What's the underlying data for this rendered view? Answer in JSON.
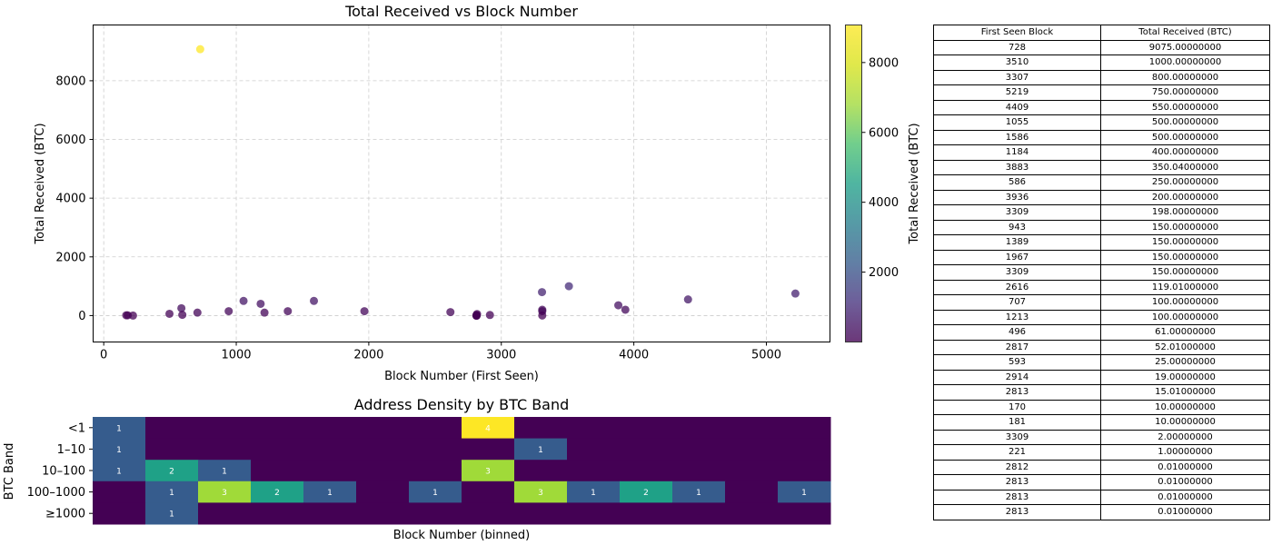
{
  "chart_data": [
    {
      "type": "scatter",
      "title": "Total Received vs Block Number",
      "xlabel": "Block Number (First Seen)",
      "ylabel": "Total Received (BTC)",
      "xlim": [
        -80,
        5480
      ],
      "ylim": [
        -900,
        9900
      ],
      "xticks": [
        0,
        1000,
        2000,
        3000,
        4000,
        5000
      ],
      "yticks": [
        0,
        2000,
        4000,
        6000,
        8000
      ],
      "grid": true,
      "colormap": "viridis",
      "points": [
        {
          "x": 728,
          "y": 9075.0
        },
        {
          "x": 3510,
          "y": 1000.0
        },
        {
          "x": 3307,
          "y": 800.0
        },
        {
          "x": 5219,
          "y": 750.0
        },
        {
          "x": 4409,
          "y": 550.0
        },
        {
          "x": 1055,
          "y": 500.0
        },
        {
          "x": 1586,
          "y": 500.0
        },
        {
          "x": 1184,
          "y": 400.0
        },
        {
          "x": 3883,
          "y": 350.04
        },
        {
          "x": 586,
          "y": 250.0
        },
        {
          "x": 3936,
          "y": 200.0
        },
        {
          "x": 3309,
          "y": 198.0
        },
        {
          "x": 943,
          "y": 150.0
        },
        {
          "x": 1389,
          "y": 150.0
        },
        {
          "x": 1967,
          "y": 150.0
        },
        {
          "x": 3309,
          "y": 150.0
        },
        {
          "x": 2616,
          "y": 119.01
        },
        {
          "x": 707,
          "y": 100.0
        },
        {
          "x": 1213,
          "y": 100.0
        },
        {
          "x": 496,
          "y": 61.0
        },
        {
          "x": 2817,
          "y": 52.01
        },
        {
          "x": 593,
          "y": 25.0
        },
        {
          "x": 2914,
          "y": 19.0
        },
        {
          "x": 2813,
          "y": 15.01
        },
        {
          "x": 170,
          "y": 10.0
        },
        {
          "x": 181,
          "y": 10.0
        },
        {
          "x": 3309,
          "y": 2.0
        },
        {
          "x": 221,
          "y": 1.0
        },
        {
          "x": 2812,
          "y": 0.01
        },
        {
          "x": 2813,
          "y": 0.01
        },
        {
          "x": 2813,
          "y": 0.01
        },
        {
          "x": 2813,
          "y": 0.01
        }
      ]
    },
    {
      "type": "heatmap",
      "title": "Address Density by BTC Band",
      "xlabel": "Block Number (binned)",
      "ylabel": "BTC Band",
      "rows": [
        "<1",
        "1–10",
        "10–100",
        "100–1000",
        "≥1000"
      ],
      "n_cols": 14,
      "cells": [
        [
          1,
          0,
          0,
          0,
          0,
          0,
          0,
          4,
          0,
          0,
          0,
          0,
          0,
          0
        ],
        [
          1,
          0,
          0,
          0,
          0,
          0,
          0,
          0,
          1,
          0,
          0,
          0,
          0,
          0
        ],
        [
          1,
          2,
          1,
          0,
          0,
          0,
          0,
          3,
          0,
          0,
          0,
          0,
          0,
          0
        ],
        [
          0,
          1,
          3,
          2,
          1,
          0,
          1,
          0,
          3,
          1,
          2,
          1,
          0,
          1
        ],
        [
          0,
          1,
          0,
          0,
          0,
          0,
          0,
          0,
          0,
          0,
          0,
          0,
          0,
          0
        ]
      ],
      "vmin": 0,
      "vmax": 4
    },
    {
      "type": "colorbar",
      "label": "Total Received (BTC)",
      "ticks": [
        2000,
        4000,
        6000,
        8000
      ],
      "range": [
        0.01,
        9075
      ]
    },
    {
      "type": "table",
      "columns": [
        "First Seen Block",
        "Total Received (BTC)"
      ],
      "rows": [
        [
          "728",
          "9075.00000000"
        ],
        [
          "3510",
          "1000.00000000"
        ],
        [
          "3307",
          "800.00000000"
        ],
        [
          "5219",
          "750.00000000"
        ],
        [
          "4409",
          "550.00000000"
        ],
        [
          "1055",
          "500.00000000"
        ],
        [
          "1586",
          "500.00000000"
        ],
        [
          "1184",
          "400.00000000"
        ],
        [
          "3883",
          "350.04000000"
        ],
        [
          "586",
          "250.00000000"
        ],
        [
          "3936",
          "200.00000000"
        ],
        [
          "3309",
          "198.00000000"
        ],
        [
          "943",
          "150.00000000"
        ],
        [
          "1389",
          "150.00000000"
        ],
        [
          "1967",
          "150.00000000"
        ],
        [
          "3309",
          "150.00000000"
        ],
        [
          "2616",
          "119.01000000"
        ],
        [
          "707",
          "100.00000000"
        ],
        [
          "1213",
          "100.00000000"
        ],
        [
          "496",
          "61.00000000"
        ],
        [
          "2817",
          "52.01000000"
        ],
        [
          "593",
          "25.00000000"
        ],
        [
          "2914",
          "19.00000000"
        ],
        [
          "2813",
          "15.01000000"
        ],
        [
          "170",
          "10.00000000"
        ],
        [
          "181",
          "10.00000000"
        ],
        [
          "3309",
          "2.00000000"
        ],
        [
          "221",
          "1.00000000"
        ],
        [
          "2812",
          "0.01000000"
        ],
        [
          "2813",
          "0.01000000"
        ],
        [
          "2813",
          "0.01000000"
        ],
        [
          "2813",
          "0.01000000"
        ]
      ]
    }
  ]
}
